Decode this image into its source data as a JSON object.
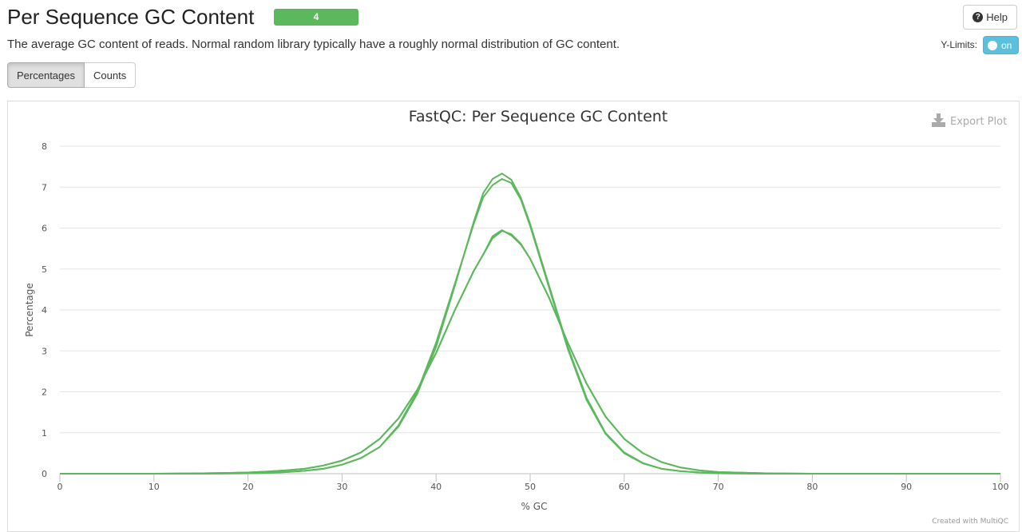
{
  "header": {
    "title": "Per Sequence GC Content",
    "badge_count": "4",
    "help_label": "Help",
    "description": "The average GC content of reads. Normal random library typically have a roughly normal distribution of GC content.",
    "ylimits_label": "Y-Limits:",
    "ylimits_toggle": "on"
  },
  "tabs": [
    {
      "label": "Percentages",
      "active": true
    },
    {
      "label": "Counts",
      "active": false
    }
  ],
  "plot": {
    "export_label": "Export Plot",
    "credit": "Created with MultiQC"
  },
  "colors": {
    "series": "#5cb85c",
    "badge": "#5cb85c",
    "toggle": "#5bc0de"
  },
  "chart_data": {
    "type": "line",
    "title": "FastQC: Per Sequence GC Content",
    "xlabel": "% GC",
    "ylabel": "Percentage",
    "xlim": [
      0,
      100
    ],
    "ylim": [
      0,
      8
    ],
    "xticks": [
      0,
      10,
      20,
      30,
      40,
      50,
      60,
      70,
      80,
      90,
      100
    ],
    "yticks": [
      0,
      1,
      2,
      3,
      4,
      5,
      6,
      7,
      8
    ],
    "grid": true,
    "legend": "none",
    "series": [
      {
        "x": [
          0,
          10,
          15,
          18,
          20,
          22,
          24,
          26,
          28,
          30,
          32,
          34,
          36,
          38,
          40,
          42,
          44,
          45,
          46,
          47,
          48,
          49,
          50,
          52,
          54,
          56,
          58,
          60,
          62,
          64,
          66,
          68,
          70,
          75,
          80,
          100
        ],
        "values": [
          0,
          0,
          0.01,
          0.02,
          0.03,
          0.05,
          0.08,
          0.12,
          0.2,
          0.32,
          0.52,
          0.85,
          1.35,
          2.05,
          2.95,
          4.0,
          4.95,
          5.35,
          5.75,
          5.93,
          5.85,
          5.62,
          5.25,
          4.3,
          3.2,
          2.2,
          1.4,
          0.85,
          0.5,
          0.28,
          0.15,
          0.08,
          0.04,
          0.01,
          0,
          0
        ]
      },
      {
        "x": [
          0,
          10,
          15,
          18,
          20,
          22,
          24,
          26,
          28,
          30,
          32,
          34,
          36,
          38,
          40,
          42,
          44,
          45,
          46,
          47,
          48,
          49,
          50,
          52,
          54,
          56,
          58,
          60,
          62,
          64,
          66,
          68,
          70,
          75,
          80,
          100
        ],
        "values": [
          0,
          0,
          0.01,
          0.02,
          0.03,
          0.05,
          0.08,
          0.12,
          0.2,
          0.32,
          0.52,
          0.85,
          1.35,
          2.05,
          2.95,
          4.0,
          4.95,
          5.35,
          5.8,
          5.95,
          5.82,
          5.6,
          5.25,
          4.3,
          3.2,
          2.2,
          1.4,
          0.85,
          0.5,
          0.28,
          0.15,
          0.08,
          0.04,
          0.01,
          0,
          0
        ]
      },
      {
        "x": [
          0,
          10,
          15,
          20,
          22,
          24,
          26,
          28,
          30,
          32,
          34,
          36,
          38,
          40,
          42,
          44,
          45,
          46,
          47,
          48,
          49,
          50,
          52,
          54,
          56,
          58,
          60,
          62,
          64,
          66,
          68,
          70,
          75,
          80,
          100
        ],
        "values": [
          0,
          0,
          0,
          0.01,
          0.02,
          0.04,
          0.07,
          0.12,
          0.22,
          0.38,
          0.65,
          1.15,
          1.95,
          3.1,
          4.6,
          6.15,
          6.85,
          7.2,
          7.33,
          7.18,
          6.75,
          6.1,
          4.6,
          3.1,
          1.85,
          1.0,
          0.52,
          0.26,
          0.12,
          0.06,
          0.03,
          0.01,
          0,
          0,
          0
        ]
      },
      {
        "x": [
          0,
          10,
          15,
          20,
          22,
          24,
          26,
          28,
          30,
          32,
          34,
          36,
          38,
          40,
          42,
          44,
          45,
          46,
          47,
          48,
          49,
          50,
          52,
          54,
          56,
          58,
          60,
          62,
          64,
          66,
          68,
          70,
          75,
          80,
          100
        ],
        "values": [
          0,
          0,
          0,
          0.01,
          0.02,
          0.04,
          0.07,
          0.12,
          0.22,
          0.38,
          0.65,
          1.18,
          2.0,
          3.2,
          4.65,
          6.1,
          6.75,
          7.05,
          7.2,
          7.1,
          6.7,
          6.05,
          4.55,
          3.05,
          1.8,
          0.98,
          0.5,
          0.25,
          0.12,
          0.06,
          0.03,
          0.01,
          0,
          0,
          0
        ]
      }
    ]
  }
}
